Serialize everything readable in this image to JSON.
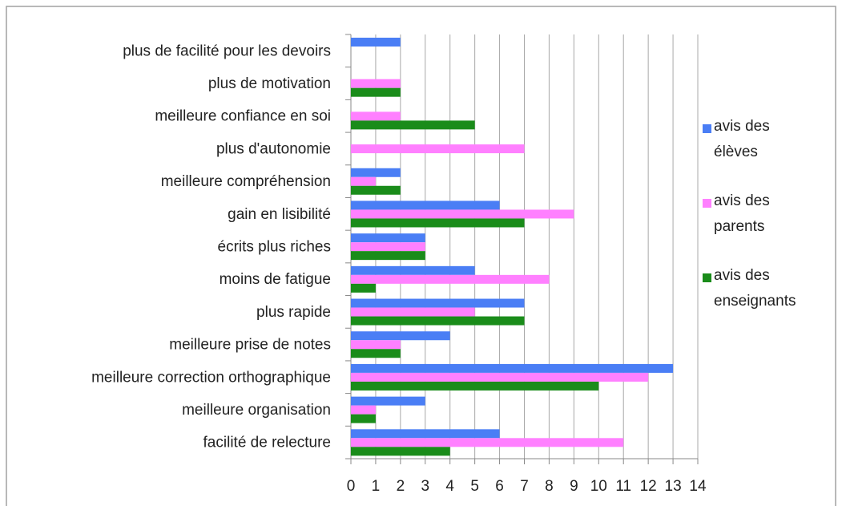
{
  "chart_data": {
    "type": "bar",
    "orientation": "horizontal",
    "categories": [
      "plus de facilité pour les devoirs",
      "plus de motivation",
      "meilleure confiance en soi",
      "plus d'autonomie",
      "meilleure compréhension",
      "gain en lisibilité",
      "écrits plus riches",
      "moins de fatigue",
      "plus rapide",
      "meilleure prise de notes",
      "meilleure correction orthographique",
      "meilleure organisation",
      "facilité de relecture"
    ],
    "series": [
      {
        "name": "avis des élèves",
        "color": "#4a7ef5",
        "values": [
          2,
          0,
          0,
          0,
          2,
          6,
          3,
          5,
          7,
          4,
          13,
          3,
          6
        ]
      },
      {
        "name": "avis des parents",
        "color": "#ff80ff",
        "values": [
          0,
          2,
          2,
          7,
          1,
          9,
          3,
          8,
          5,
          2,
          12,
          1,
          11
        ]
      },
      {
        "name": "avis des enseignants",
        "color": "#1a8c1a",
        "values": [
          0,
          2,
          5,
          0,
          2,
          7,
          3,
          1,
          7,
          2,
          10,
          1,
          4
        ]
      }
    ],
    "xlim": [
      0,
      14
    ],
    "xticks": [
      0,
      1,
      2,
      3,
      4,
      5,
      6,
      7,
      8,
      9,
      10,
      11,
      12,
      13,
      14
    ],
    "grid": true,
    "legend": "right"
  }
}
